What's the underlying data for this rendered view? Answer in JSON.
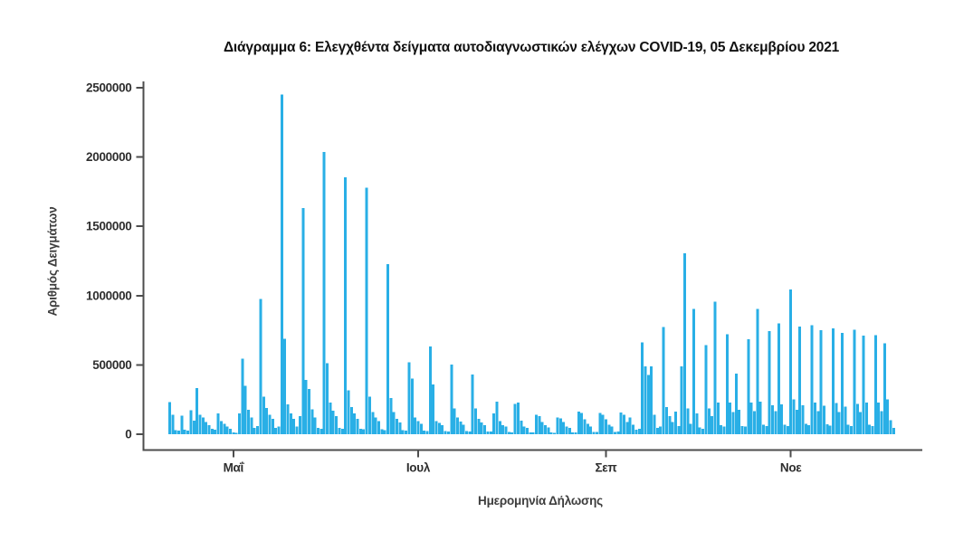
{
  "page": {
    "background": "#ffffff"
  },
  "colors": {
    "bar": "#29AFE6",
    "axis_line": "#4d4d4d",
    "tick_text": "#2e2e2e",
    "axis_title_text": "#3d3d3d",
    "title_text": "#111111"
  },
  "chart_data": {
    "type": "bar",
    "title": "Διάγραμμα 6: Ελεγχθέντα δείγματα αυτοδιαγνωστικών ελέγχων COVID-19, 05 Δεκεμβρίου 2021",
    "xlabel": "Ημερομηνία Δήλωσης",
    "ylabel": "Αριθμός Δειγμάτων",
    "grid": false,
    "legend": false,
    "ylim": [
      0,
      2500000
    ],
    "y_ticks": [
      0,
      500000,
      1000000,
      1500000,
      2000000,
      2500000
    ],
    "y_tick_labels": [
      "0",
      "500000",
      "1000000",
      "1500000",
      "2000000",
      "2500000"
    ],
    "x_ticks": [
      {
        "date": "2021-05-01",
        "label": "Μαΐ"
      },
      {
        "date": "2021-07-01",
        "label": "Ιουλ"
      },
      {
        "date": "2021-09-01",
        "label": "Σεπ"
      },
      {
        "date": "2021-11-01",
        "label": "Νοε"
      }
    ],
    "x_start_date": "2021-04-10",
    "x_end_date": "2021-12-05",
    "frequency": "daily",
    "values": [
      233000,
      141000,
      30000,
      25000,
      135000,
      33000,
      25000,
      174000,
      98000,
      333000,
      141000,
      120000,
      87000,
      65000,
      40000,
      33000,
      151000,
      96000,
      76000,
      55000,
      40000,
      12000,
      10000,
      151000,
      546000,
      349000,
      175000,
      120000,
      45000,
      60000,
      975000,
      272000,
      190000,
      140000,
      110000,
      45000,
      55000,
      2450000,
      689000,
      217000,
      150000,
      110000,
      55000,
      130000,
      1632000,
      393000,
      327000,
      180000,
      120000,
      45000,
      40000,
      2037000,
      513000,
      228000,
      170000,
      130000,
      45000,
      40000,
      1855000,
      316000,
      195000,
      150000,
      110000,
      40000,
      35000,
      1779000,
      270000,
      160000,
      120000,
      95000,
      35000,
      30000,
      1226000,
      260000,
      160000,
      110000,
      85000,
      30000,
      25000,
      520000,
      403000,
      120000,
      95000,
      75000,
      25000,
      22000,
      634000,
      360000,
      96000,
      80000,
      65000,
      22000,
      20000,
      502000,
      185000,
      120000,
      90000,
      70000,
      22000,
      20000,
      432000,
      185000,
      110000,
      85000,
      65000,
      20000,
      18000,
      150000,
      235000,
      95000,
      65000,
      55000,
      16000,
      14000,
      220000,
      228000,
      98000,
      54000,
      45000,
      14000,
      13000,
      141000,
      131000,
      87000,
      65000,
      50000,
      13000,
      11000,
      120000,
      113000,
      87000,
      54000,
      45000,
      13000,
      14000,
      163000,
      152000,
      109000,
      76000,
      55000,
      16000,
      16000,
      152000,
      141000,
      109000,
      70000,
      55000,
      17000,
      18000,
      157000,
      141000,
      87000,
      120000,
      70000,
      33000,
      40000,
      664000,
      490000,
      429000,
      490000,
      140000,
      45000,
      55000,
      772000,
      196000,
      130000,
      87000,
      163000,
      60000,
      490000,
      1306000,
      185000,
      76000,
      903000,
      150000,
      50000,
      40000,
      642000,
      185000,
      130000,
      957000,
      230000,
      65000,
      55000,
      720000,
      230000,
      160000,
      436000,
      175000,
      60000,
      55000,
      685000,
      230000,
      165000,
      905000,
      235000,
      70000,
      60000,
      745000,
      210000,
      165000,
      800000,
      215000,
      70000,
      60000,
      1046000,
      250000,
      175000,
      776000,
      210000,
      75000,
      65000,
      787000,
      230000,
      165000,
      750000,
      205000,
      72000,
      62000,
      765000,
      225000,
      160000,
      732000,
      200000,
      70000,
      60000,
      754000,
      220000,
      160000,
      710000,
      228000,
      70000,
      60000,
      715000,
      230000,
      165000,
      656000,
      250000,
      100000,
      45000
    ]
  }
}
